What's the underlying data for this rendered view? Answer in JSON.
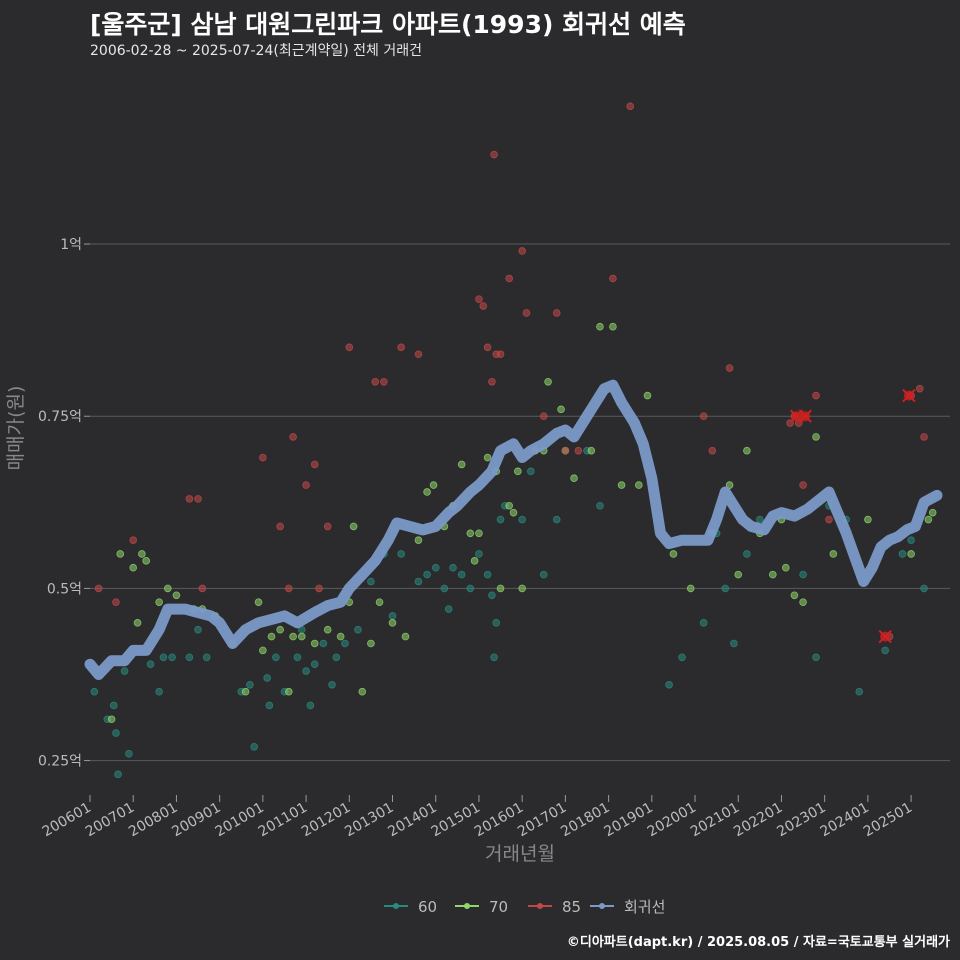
{
  "header": {
    "title": "[울주군] 삼남 대원그린파크 아파트(1993) 회귀선 예측",
    "subtitle": "2006-02-28 ~ 2025-07-24(최근계약일) 전체 거래건"
  },
  "footer": {
    "credit": "©디아파트(dapt.kr) / 2025.08.05 / 자료=국토교통부 실거래가"
  },
  "colors": {
    "background": "#2b2b2d",
    "grid": "#5a5a5c",
    "axis_text": "#bbbbbb",
    "s60": "#2a8a7e",
    "s70": "#8fd66b",
    "s85": "#c24848",
    "trend": "#7b9ac8",
    "highlight": "#d02020"
  },
  "chart_data": {
    "type": "scatter",
    "title": "[울주군] 삼남 대원그린파크 아파트(1993) 회귀선 예측",
    "xlabel": "거래년월",
    "ylabel": "매매가(원)",
    "xlim": [
      2006.0,
      2025.9
    ],
    "ylim": [
      0.2,
      1.26
    ],
    "x_ticks": [
      {
        "v": 2006,
        "label": "200601"
      },
      {
        "v": 2007,
        "label": "200701"
      },
      {
        "v": 2008,
        "label": "200801"
      },
      {
        "v": 2009,
        "label": "200901"
      },
      {
        "v": 2010,
        "label": "201001"
      },
      {
        "v": 2011,
        "label": "201101"
      },
      {
        "v": 2012,
        "label": "201201"
      },
      {
        "v": 2013,
        "label": "201301"
      },
      {
        "v": 2014,
        "label": "201401"
      },
      {
        "v": 2015,
        "label": "201501"
      },
      {
        "v": 2016,
        "label": "201601"
      },
      {
        "v": 2017,
        "label": "201701"
      },
      {
        "v": 2018,
        "label": "201801"
      },
      {
        "v": 2019,
        "label": "201901"
      },
      {
        "v": 2020,
        "label": "202001"
      },
      {
        "v": 2021,
        "label": "202101"
      },
      {
        "v": 2022,
        "label": "202201"
      },
      {
        "v": 2023,
        "label": "202301"
      },
      {
        "v": 2024,
        "label": "202401"
      },
      {
        "v": 2025,
        "label": "202501"
      }
    ],
    "y_ticks": [
      {
        "v": 0.25,
        "label": "0.25억"
      },
      {
        "v": 0.5,
        "label": "0.5억"
      },
      {
        "v": 0.75,
        "label": "0.75억"
      },
      {
        "v": 1.0,
        "label": "1억"
      }
    ],
    "legend": [
      {
        "key": "s60",
        "label": "60"
      },
      {
        "key": "s70",
        "label": "70"
      },
      {
        "key": "s85",
        "label": "85"
      },
      {
        "key": "trend",
        "label": "회귀선"
      }
    ],
    "legend_position": "bottom",
    "series": [
      {
        "name": "60",
        "color_key": "s60",
        "points": [
          [
            2006.1,
            0.35
          ],
          [
            2006.4,
            0.31
          ],
          [
            2006.55,
            0.33
          ],
          [
            2006.6,
            0.29
          ],
          [
            2006.65,
            0.23
          ],
          [
            2006.8,
            0.38
          ],
          [
            2006.9,
            0.26
          ],
          [
            2007.4,
            0.39
          ],
          [
            2007.6,
            0.35
          ],
          [
            2007.7,
            0.4
          ],
          [
            2007.9,
            0.4
          ],
          [
            2008.3,
            0.4
          ],
          [
            2008.5,
            0.44
          ],
          [
            2008.7,
            0.4
          ],
          [
            2009.5,
            0.35
          ],
          [
            2009.7,
            0.36
          ],
          [
            2009.8,
            0.27
          ],
          [
            2010.1,
            0.37
          ],
          [
            2010.15,
            0.33
          ],
          [
            2010.3,
            0.4
          ],
          [
            2010.5,
            0.35
          ],
          [
            2010.8,
            0.4
          ],
          [
            2010.9,
            0.44
          ],
          [
            2011.0,
            0.38
          ],
          [
            2011.1,
            0.33
          ],
          [
            2011.2,
            0.39
          ],
          [
            2011.4,
            0.42
          ],
          [
            2011.6,
            0.36
          ],
          [
            2011.7,
            0.4
          ],
          [
            2011.9,
            0.42
          ],
          [
            2012.2,
            0.44
          ],
          [
            2012.5,
            0.51
          ],
          [
            2012.8,
            0.55
          ],
          [
            2013.0,
            0.46
          ],
          [
            2013.2,
            0.55
          ],
          [
            2013.6,
            0.51
          ],
          [
            2013.8,
            0.52
          ],
          [
            2014.0,
            0.53
          ],
          [
            2014.2,
            0.5
          ],
          [
            2014.3,
            0.47
          ],
          [
            2014.4,
            0.53
          ],
          [
            2014.6,
            0.52
          ],
          [
            2014.8,
            0.5
          ],
          [
            2015.0,
            0.55
          ],
          [
            2015.2,
            0.52
          ],
          [
            2015.3,
            0.49
          ],
          [
            2015.35,
            0.4
          ],
          [
            2015.4,
            0.45
          ],
          [
            2015.5,
            0.6
          ],
          [
            2015.6,
            0.62
          ],
          [
            2016.0,
            0.6
          ],
          [
            2016.2,
            0.67
          ],
          [
            2016.5,
            0.52
          ],
          [
            2016.8,
            0.6
          ],
          [
            2017.0,
            0.7
          ],
          [
            2017.5,
            0.7
          ],
          [
            2017.8,
            0.62
          ],
          [
            2019.4,
            0.36
          ],
          [
            2019.7,
            0.4
          ],
          [
            2020.2,
            0.45
          ],
          [
            2020.5,
            0.58
          ],
          [
            2020.7,
            0.5
          ],
          [
            2020.9,
            0.42
          ],
          [
            2021.2,
            0.55
          ],
          [
            2021.5,
            0.6
          ],
          [
            2022.5,
            0.52
          ],
          [
            2022.8,
            0.4
          ],
          [
            2023.1,
            0.62
          ],
          [
            2023.5,
            0.6
          ],
          [
            2023.8,
            0.35
          ],
          [
            2024.4,
            0.41
          ],
          [
            2024.8,
            0.55
          ],
          [
            2025.0,
            0.57
          ],
          [
            2025.3,
            0.5
          ]
        ]
      },
      {
        "name": "70",
        "color_key": "s70",
        "points": [
          [
            2006.5,
            0.31
          ],
          [
            2006.7,
            0.55
          ],
          [
            2007.0,
            0.53
          ],
          [
            2007.1,
            0.45
          ],
          [
            2007.2,
            0.55
          ],
          [
            2007.3,
            0.54
          ],
          [
            2007.6,
            0.48
          ],
          [
            2007.8,
            0.5
          ],
          [
            2008.0,
            0.49
          ],
          [
            2008.4,
            0.47
          ],
          [
            2008.6,
            0.47
          ],
          [
            2008.9,
            0.46
          ],
          [
            2009.3,
            0.42
          ],
          [
            2009.6,
            0.35
          ],
          [
            2009.9,
            0.48
          ],
          [
            2010.0,
            0.41
          ],
          [
            2010.2,
            0.43
          ],
          [
            2010.4,
            0.44
          ],
          [
            2010.6,
            0.35
          ],
          [
            2010.7,
            0.43
          ],
          [
            2010.9,
            0.43
          ],
          [
            2011.2,
            0.42
          ],
          [
            2011.5,
            0.44
          ],
          [
            2011.8,
            0.43
          ],
          [
            2012.0,
            0.48
          ],
          [
            2012.1,
            0.59
          ],
          [
            2012.3,
            0.35
          ],
          [
            2012.5,
            0.42
          ],
          [
            2012.7,
            0.48
          ],
          [
            2013.0,
            0.45
          ],
          [
            2013.3,
            0.43
          ],
          [
            2013.6,
            0.57
          ],
          [
            2013.8,
            0.64
          ],
          [
            2013.95,
            0.65
          ],
          [
            2014.2,
            0.59
          ],
          [
            2014.4,
            0.62
          ],
          [
            2014.6,
            0.68
          ],
          [
            2014.8,
            0.58
          ],
          [
            2014.9,
            0.54
          ],
          [
            2015.0,
            0.58
          ],
          [
            2015.2,
            0.69
          ],
          [
            2015.4,
            0.67
          ],
          [
            2015.5,
            0.5
          ],
          [
            2015.7,
            0.62
          ],
          [
            2015.8,
            0.61
          ],
          [
            2015.9,
            0.67
          ],
          [
            2016.0,
            0.5
          ],
          [
            2016.3,
            0.7
          ],
          [
            2016.5,
            0.7
          ],
          [
            2016.6,
            0.8
          ],
          [
            2016.9,
            0.76
          ],
          [
            2017.0,
            0.7
          ],
          [
            2017.2,
            0.66
          ],
          [
            2017.6,
            0.7
          ],
          [
            2017.8,
            0.88
          ],
          [
            2018.1,
            0.88
          ],
          [
            2018.3,
            0.65
          ],
          [
            2018.7,
            0.65
          ],
          [
            2018.9,
            0.78
          ],
          [
            2019.5,
            0.55
          ],
          [
            2019.9,
            0.5
          ],
          [
            2020.4,
            0.58
          ],
          [
            2020.8,
            0.65
          ],
          [
            2021.0,
            0.52
          ],
          [
            2021.2,
            0.7
          ],
          [
            2021.5,
            0.58
          ],
          [
            2021.8,
            0.52
          ],
          [
            2022.0,
            0.6
          ],
          [
            2022.1,
            0.53
          ],
          [
            2022.3,
            0.49
          ],
          [
            2022.5,
            0.48
          ],
          [
            2022.8,
            0.72
          ],
          [
            2023.2,
            0.55
          ],
          [
            2024.0,
            0.6
          ],
          [
            2025.0,
            0.55
          ],
          [
            2025.4,
            0.6
          ],
          [
            2025.5,
            0.61
          ]
        ]
      },
      {
        "name": "85",
        "color_key": "s85",
        "points": [
          [
            2006.2,
            0.5
          ],
          [
            2006.6,
            0.48
          ],
          [
            2007.0,
            0.57
          ],
          [
            2008.3,
            0.63
          ],
          [
            2008.5,
            0.63
          ],
          [
            2008.6,
            0.5
          ],
          [
            2010.0,
            0.69
          ],
          [
            2010.4,
            0.59
          ],
          [
            2010.6,
            0.5
          ],
          [
            2010.7,
            0.72
          ],
          [
            2011.0,
            0.65
          ],
          [
            2011.2,
            0.68
          ],
          [
            2011.3,
            0.5
          ],
          [
            2011.5,
            0.59
          ],
          [
            2012.0,
            0.85
          ],
          [
            2012.6,
            0.8
          ],
          [
            2012.8,
            0.8
          ],
          [
            2013.2,
            0.85
          ],
          [
            2013.6,
            0.84
          ],
          [
            2015.0,
            0.92
          ],
          [
            2015.1,
            0.91
          ],
          [
            2015.2,
            0.85
          ],
          [
            2015.3,
            0.8
          ],
          [
            2015.35,
            1.13
          ],
          [
            2015.4,
            0.84
          ],
          [
            2015.5,
            0.84
          ],
          [
            2015.7,
            0.95
          ],
          [
            2016.0,
            0.99
          ],
          [
            2016.1,
            0.9
          ],
          [
            2016.5,
            0.75
          ],
          [
            2016.8,
            0.9
          ],
          [
            2017.0,
            0.7
          ],
          [
            2017.3,
            0.7
          ],
          [
            2018.1,
            0.95
          ],
          [
            2018.5,
            1.2
          ],
          [
            2020.2,
            0.75
          ],
          [
            2020.4,
            0.7
          ],
          [
            2020.8,
            0.82
          ],
          [
            2022.2,
            0.74
          ],
          [
            2022.3,
            0.75
          ],
          [
            2022.4,
            0.74
          ],
          [
            2022.5,
            0.65
          ],
          [
            2022.8,
            0.78
          ],
          [
            2023.1,
            0.6
          ],
          [
            2024.5,
            0.43
          ],
          [
            2025.0,
            0.78
          ],
          [
            2025.2,
            0.79
          ],
          [
            2025.3,
            0.72
          ]
        ]
      }
    ],
    "highlights": [
      {
        "x": 2022.35,
        "y": 0.75
      },
      {
        "x": 2022.55,
        "y": 0.75
      },
      {
        "x": 2024.4,
        "y": 0.43
      },
      {
        "x": 2024.95,
        "y": 0.78
      }
    ],
    "trend": {
      "name": "회귀선",
      "color_key": "trend",
      "points": [
        [
          2006.0,
          0.39
        ],
        [
          2006.2,
          0.375
        ],
        [
          2006.5,
          0.395
        ],
        [
          2006.8,
          0.395
        ],
        [
          2007.0,
          0.41
        ],
        [
          2007.3,
          0.41
        ],
        [
          2007.6,
          0.44
        ],
        [
          2007.8,
          0.47
        ],
        [
          2008.2,
          0.47
        ],
        [
          2008.5,
          0.465
        ],
        [
          2008.8,
          0.46
        ],
        [
          2009.0,
          0.45
        ],
        [
          2009.3,
          0.42
        ],
        [
          2009.6,
          0.44
        ],
        [
          2009.9,
          0.45
        ],
        [
          2010.2,
          0.455
        ],
        [
          2010.5,
          0.46
        ],
        [
          2010.8,
          0.45
        ],
        [
          2011.2,
          0.465
        ],
        [
          2011.5,
          0.475
        ],
        [
          2011.8,
          0.48
        ],
        [
          2012.0,
          0.5
        ],
        [
          2012.3,
          0.52
        ],
        [
          2012.6,
          0.54
        ],
        [
          2012.9,
          0.57
        ],
        [
          2013.1,
          0.595
        ],
        [
          2013.4,
          0.59
        ],
        [
          2013.7,
          0.585
        ],
        [
          2014.0,
          0.59
        ],
        [
          2014.3,
          0.61
        ],
        [
          2014.5,
          0.62
        ],
        [
          2014.8,
          0.64
        ],
        [
          2015.0,
          0.65
        ],
        [
          2015.3,
          0.67
        ],
        [
          2015.5,
          0.7
        ],
        [
          2015.8,
          0.71
        ],
        [
          2016.0,
          0.69
        ],
        [
          2016.2,
          0.7
        ],
        [
          2016.5,
          0.71
        ],
        [
          2016.8,
          0.725
        ],
        [
          2017.0,
          0.73
        ],
        [
          2017.2,
          0.72
        ],
        [
          2017.5,
          0.75
        ],
        [
          2017.7,
          0.77
        ],
        [
          2017.9,
          0.79
        ],
        [
          2018.1,
          0.795
        ],
        [
          2018.3,
          0.77
        ],
        [
          2018.6,
          0.74
        ],
        [
          2018.8,
          0.71
        ],
        [
          2019.0,
          0.66
        ],
        [
          2019.2,
          0.58
        ],
        [
          2019.4,
          0.565
        ],
        [
          2019.7,
          0.57
        ],
        [
          2020.0,
          0.57
        ],
        [
          2020.3,
          0.57
        ],
        [
          2020.5,
          0.6
        ],
        [
          2020.7,
          0.64
        ],
        [
          2020.9,
          0.62
        ],
        [
          2021.1,
          0.6
        ],
        [
          2021.3,
          0.59
        ],
        [
          2021.6,
          0.585
        ],
        [
          2021.8,
          0.605
        ],
        [
          2022.0,
          0.61
        ],
        [
          2022.3,
          0.605
        ],
        [
          2022.6,
          0.615
        ],
        [
          2022.9,
          0.63
        ],
        [
          2023.1,
          0.64
        ],
        [
          2023.3,
          0.61
        ],
        [
          2023.5,
          0.58
        ],
        [
          2023.7,
          0.545
        ],
        [
          2023.9,
          0.51
        ],
        [
          2024.1,
          0.53
        ],
        [
          2024.3,
          0.56
        ],
        [
          2024.5,
          0.57
        ],
        [
          2024.7,
          0.575
        ],
        [
          2024.9,
          0.585
        ],
        [
          2025.1,
          0.59
        ],
        [
          2025.3,
          0.625
        ],
        [
          2025.6,
          0.635
        ]
      ]
    }
  }
}
